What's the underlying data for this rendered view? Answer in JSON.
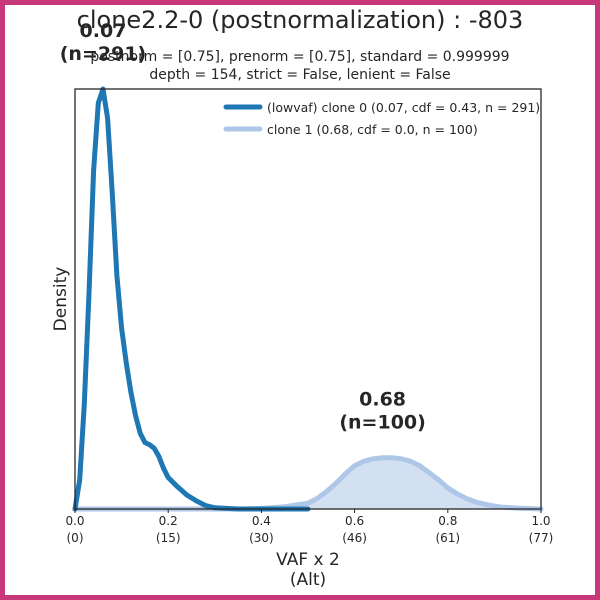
{
  "chart_data": {
    "type": "line",
    "title": "clone2.2-0 (postnormalization) : -803",
    "subtitle_lines": [
      "postnorm = [0.75], prenorm = [0.75], standard = 0.999999",
      "depth = 154, strict = False, lenient = False"
    ],
    "xlabel_lines": [
      "VAF x 2",
      "(Alt)"
    ],
    "ylabel": "Density",
    "xlim": [
      0.0,
      1.0
    ],
    "ylim": [
      0,
      3.6
    ],
    "grid": false,
    "legend_position": "top-right",
    "x_ticks": [
      {
        "value": 0.0,
        "label": "0.0",
        "sub": "(0)"
      },
      {
        "value": 0.2,
        "label": "0.2",
        "sub": "(15)"
      },
      {
        "value": 0.4,
        "label": "0.4",
        "sub": "(30)"
      },
      {
        "value": 0.6,
        "label": "0.6",
        "sub": "(46)"
      },
      {
        "value": 0.8,
        "label": "0.8",
        "sub": "(61)"
      },
      {
        "value": 1.0,
        "label": "1.0",
        "sub": "(77)"
      }
    ],
    "series": [
      {
        "name": "(lowvaf) clone 0 (0.07, cdf = 0.43, n = 291)",
        "color": "#1f77b4",
        "fill": false,
        "peak_label": {
          "value": "0.07",
          "n": "(n=291)"
        },
        "x": [
          0.0,
          0.01,
          0.02,
          0.03,
          0.04,
          0.05,
          0.06,
          0.07,
          0.08,
          0.09,
          0.1,
          0.11,
          0.12,
          0.13,
          0.14,
          0.15,
          0.16,
          0.17,
          0.18,
          0.19,
          0.2,
          0.22,
          0.24,
          0.26,
          0.28,
          0.3,
          0.35,
          0.4,
          0.45,
          0.5
        ],
        "y": [
          0.0,
          0.25,
          0.9,
          1.85,
          2.9,
          3.48,
          3.6,
          3.35,
          2.7,
          2.0,
          1.55,
          1.25,
          1.0,
          0.8,
          0.65,
          0.57,
          0.55,
          0.52,
          0.45,
          0.35,
          0.27,
          0.19,
          0.12,
          0.07,
          0.03,
          0.01,
          0.0,
          0.0,
          0.0,
          0.0
        ]
      },
      {
        "name": "clone 1 (0.68, cdf = 0.0, n = 100)",
        "color": "#aec7e8",
        "fill": true,
        "peak_label": {
          "value": "0.68",
          "n": "(n=100)"
        },
        "x": [
          0.0,
          0.35,
          0.4,
          0.45,
          0.5,
          0.52,
          0.54,
          0.56,
          0.58,
          0.6,
          0.62,
          0.64,
          0.66,
          0.68,
          0.7,
          0.72,
          0.74,
          0.76,
          0.78,
          0.8,
          0.82,
          0.84,
          0.86,
          0.88,
          0.9,
          0.92,
          0.95,
          1.0
        ],
        "y": [
          0.0,
          0.0,
          0.005,
          0.02,
          0.05,
          0.09,
          0.15,
          0.22,
          0.3,
          0.37,
          0.41,
          0.43,
          0.44,
          0.44,
          0.43,
          0.41,
          0.37,
          0.31,
          0.25,
          0.18,
          0.13,
          0.09,
          0.06,
          0.04,
          0.025,
          0.015,
          0.008,
          0.0
        ]
      }
    ]
  }
}
